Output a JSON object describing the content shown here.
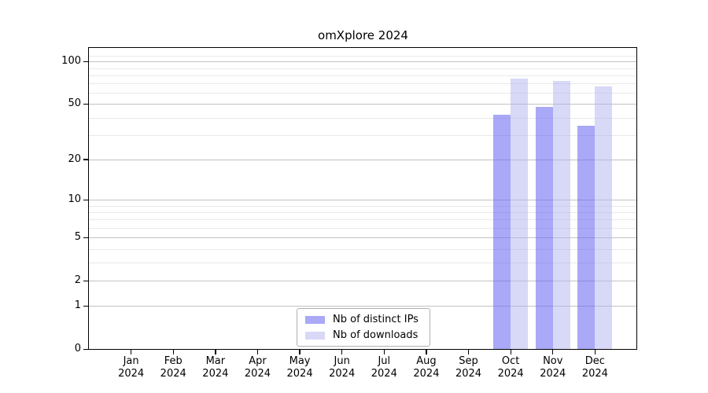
{
  "chart_data": {
    "type": "bar",
    "title": "omXplore 2024",
    "categories": [
      "Jan 2024",
      "Feb 2024",
      "Mar 2024",
      "Apr 2024",
      "May 2024",
      "Jun 2024",
      "Jul 2024",
      "Aug 2024",
      "Sep 2024",
      "Oct 2024",
      "Nov 2024",
      "Dec 2024"
    ],
    "series": [
      {
        "name": "Nb of distinct IPs",
        "color": "#6666f0",
        "alpha": 0.56,
        "values": [
          0,
          0,
          0,
          0,
          0,
          0,
          0,
          0,
          0,
          42,
          48,
          35
        ]
      },
      {
        "name": "Nb of downloads",
        "color": "#b2b2f0",
        "alpha": 0.5,
        "values": [
          0,
          0,
          0,
          0,
          0,
          0,
          0,
          0,
          0,
          76,
          73,
          67
        ]
      }
    ],
    "y_axis": {
      "scale": "log1p",
      "ticks": [
        0,
        1,
        2,
        5,
        10,
        20,
        50,
        100
      ],
      "minor_gridlines": [
        3,
        4,
        6,
        7,
        8,
        9,
        30,
        40,
        60,
        70,
        80,
        90,
        110
      ],
      "top_value": 125
    },
    "x_axis": {
      "tick_label_lines": 2
    },
    "legend": {
      "position": "bottom-center"
    },
    "grid": "horizontal-only",
    "colors": {
      "major_gridline": "#c2c2c2",
      "minor_gridline": "#e9e9e9",
      "spine": "#000000",
      "background": "#ffffff",
      "text": "#000000",
      "legend_border": "#b0b0b0"
    }
  }
}
